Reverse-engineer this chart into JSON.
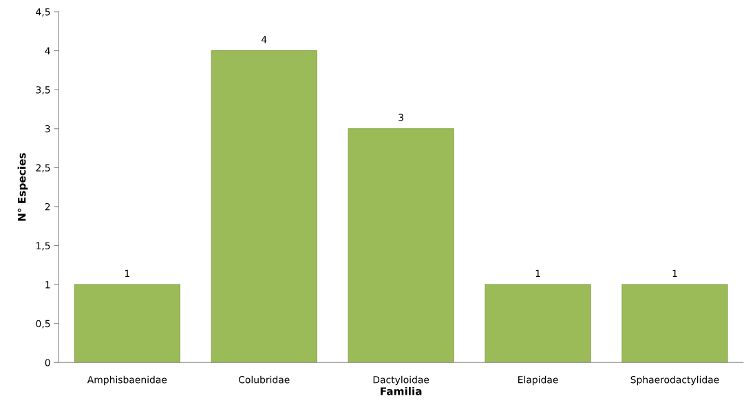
{
  "chart_data": {
    "type": "bar",
    "xlabel": "Familia",
    "ylabel": "N° Especies",
    "categories": [
      "Amphisbaenidae",
      "Colubridae",
      "Dactyloidae",
      "Elapidae",
      "Sphaerodactylidae"
    ],
    "values": [
      1,
      4,
      3,
      1,
      1
    ],
    "color": "#9bbb59",
    "ylim": [
      0,
      4.5
    ],
    "yticks": [
      0,
      {
        "value": 0.5,
        "label": "0,5"
      },
      1,
      {
        "value": 1.5,
        "label": "1,5"
      },
      2,
      {
        "value": 2.5,
        "label": "2,5"
      },
      3,
      {
        "value": 3.5,
        "label": "3,5"
      },
      4,
      {
        "value": 4.5,
        "label": "4,5"
      }
    ],
    "data_labels": true,
    "grid": false,
    "legend": false
  }
}
